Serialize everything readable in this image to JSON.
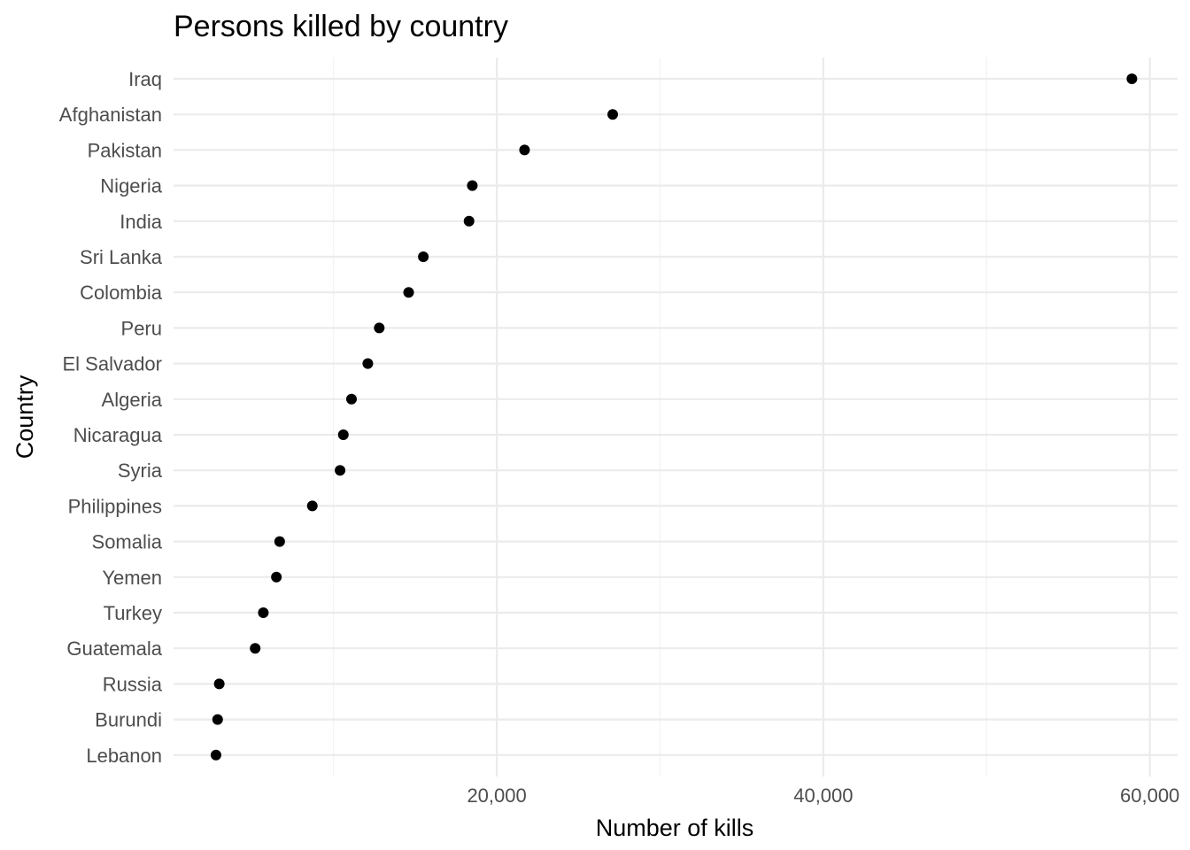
{
  "chart_data": {
    "type": "scatter",
    "title": "Persons killed by country",
    "xlabel": "Number of kills",
    "ylabel": "Country",
    "xlim": [
      200,
      61700
    ],
    "x_ticks": [
      20000,
      40000,
      60000
    ],
    "x_tick_labels": [
      "20,000",
      "40,000",
      "60,000"
    ],
    "x_minor_ticks": [
      10000,
      30000,
      50000
    ],
    "grid": true,
    "legend": "none",
    "point_color": "#000000",
    "categories": [
      "Iraq",
      "Afghanistan",
      "Pakistan",
      "Nigeria",
      "India",
      "Sri Lanka",
      "Colombia",
      "Peru",
      "El Salvador",
      "Algeria",
      "Nicaragua",
      "Syria",
      "Philippines",
      "Somalia",
      "Yemen",
      "Turkey",
      "Guatemala",
      "Russia",
      "Burundi",
      "Lebanon"
    ],
    "values": [
      58900,
      27100,
      21700,
      18500,
      18300,
      15500,
      14600,
      12800,
      12100,
      11100,
      10600,
      10400,
      8700,
      6700,
      6500,
      5700,
      5200,
      3000,
      2900,
      2800
    ]
  }
}
